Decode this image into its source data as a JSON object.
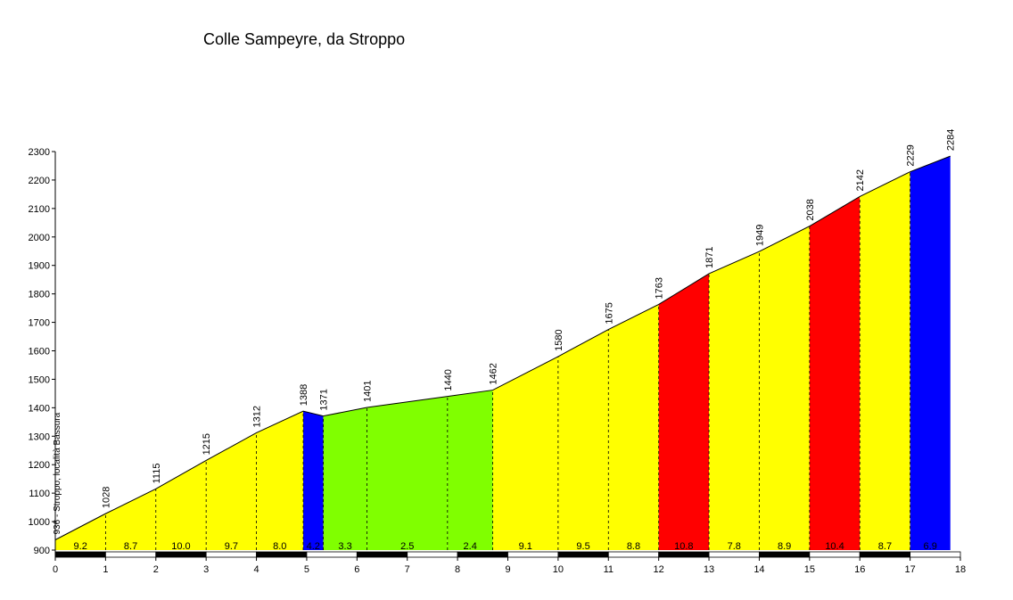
{
  "chart_data": {
    "type": "area",
    "title": "Colle Sampeyre, da Stroppo",
    "xlabel": "",
    "ylabel": "",
    "xlim": [
      0,
      18
    ],
    "ylim": [
      900,
      2300
    ],
    "x_ticks": [
      0,
      1,
      2,
      3,
      4,
      5,
      6,
      7,
      8,
      9,
      10,
      11,
      12,
      13,
      14,
      15,
      16,
      17,
      18
    ],
    "y_ticks": [
      900,
      1000,
      1100,
      1200,
      1300,
      1400,
      1500,
      1600,
      1700,
      1800,
      1900,
      2000,
      2100,
      2200,
      2300
    ],
    "start_label": "936 - Stroppo, località Bassura",
    "profile": [
      {
        "x": 0,
        "y": 936
      },
      {
        "x": 1,
        "y": 1028
      },
      {
        "x": 2,
        "y": 1115
      },
      {
        "x": 3,
        "y": 1215
      },
      {
        "x": 4,
        "y": 1312
      },
      {
        "x": 4.93,
        "y": 1388
      },
      {
        "x": 5.33,
        "y": 1371
      },
      {
        "x": 6.2,
        "y": 1401
      },
      {
        "x": 7.8,
        "y": 1440
      },
      {
        "x": 8.7,
        "y": 1462
      },
      {
        "x": 10,
        "y": 1580
      },
      {
        "x": 11,
        "y": 1675
      },
      {
        "x": 12,
        "y": 1763
      },
      {
        "x": 13,
        "y": 1871
      },
      {
        "x": 14,
        "y": 1949
      },
      {
        "x": 15,
        "y": 2038
      },
      {
        "x": 16,
        "y": 2142
      },
      {
        "x": 17,
        "y": 2229
      },
      {
        "x": 17.8,
        "y": 2284
      }
    ],
    "point_labels": [
      "1028",
      "1115",
      "1215",
      "1312",
      "1388",
      "1371",
      "1401",
      "1440",
      "1462",
      "1580",
      "1675",
      "1763",
      "1871",
      "1949",
      "2038",
      "2142",
      "2229",
      "2284"
    ],
    "segments": [
      {
        "from": 0,
        "to": 1,
        "gradient": "9.2",
        "color": "#ffff00"
      },
      {
        "from": 1,
        "to": 2,
        "gradient": "8.7",
        "color": "#ffff00"
      },
      {
        "from": 2,
        "to": 3,
        "gradient": "10.0",
        "color": "#ffff00"
      },
      {
        "from": 3,
        "to": 4,
        "gradient": "9.7",
        "color": "#ffff00"
      },
      {
        "from": 4,
        "to": 4.93,
        "gradient": "8.0",
        "color": "#ffff00"
      },
      {
        "from": 4.93,
        "to": 5.33,
        "gradient": "4.2",
        "color": "#0000ff"
      },
      {
        "from": 5.33,
        "to": 6.2,
        "gradient": "3.3",
        "color": "#80ff00"
      },
      {
        "from": 6.2,
        "to": 7.8,
        "gradient": "2.5",
        "color": "#80ff00"
      },
      {
        "from": 7.8,
        "to": 8.7,
        "gradient": "2.4",
        "color": "#80ff00"
      },
      {
        "from": 8.7,
        "to": 10,
        "gradient": "9.1",
        "color": "#ffff00"
      },
      {
        "from": 10,
        "to": 11,
        "gradient": "9.5",
        "color": "#ffff00"
      },
      {
        "from": 11,
        "to": 12,
        "gradient": "8.8",
        "color": "#ffff00"
      },
      {
        "from": 12,
        "to": 13,
        "gradient": "10.8",
        "color": "#ff0000"
      },
      {
        "from": 13,
        "to": 14,
        "gradient": "7.8",
        "color": "#ffff00"
      },
      {
        "from": 14,
        "to": 15,
        "gradient": "8.9",
        "color": "#ffff00"
      },
      {
        "from": 15,
        "to": 16,
        "gradient": "10.4",
        "color": "#ff0000"
      },
      {
        "from": 16,
        "to": 17,
        "gradient": "8.7",
        "color": "#ffff00"
      },
      {
        "from": 17,
        "to": 17.8,
        "gradient": "6.9",
        "color": "#0000ff"
      }
    ]
  }
}
